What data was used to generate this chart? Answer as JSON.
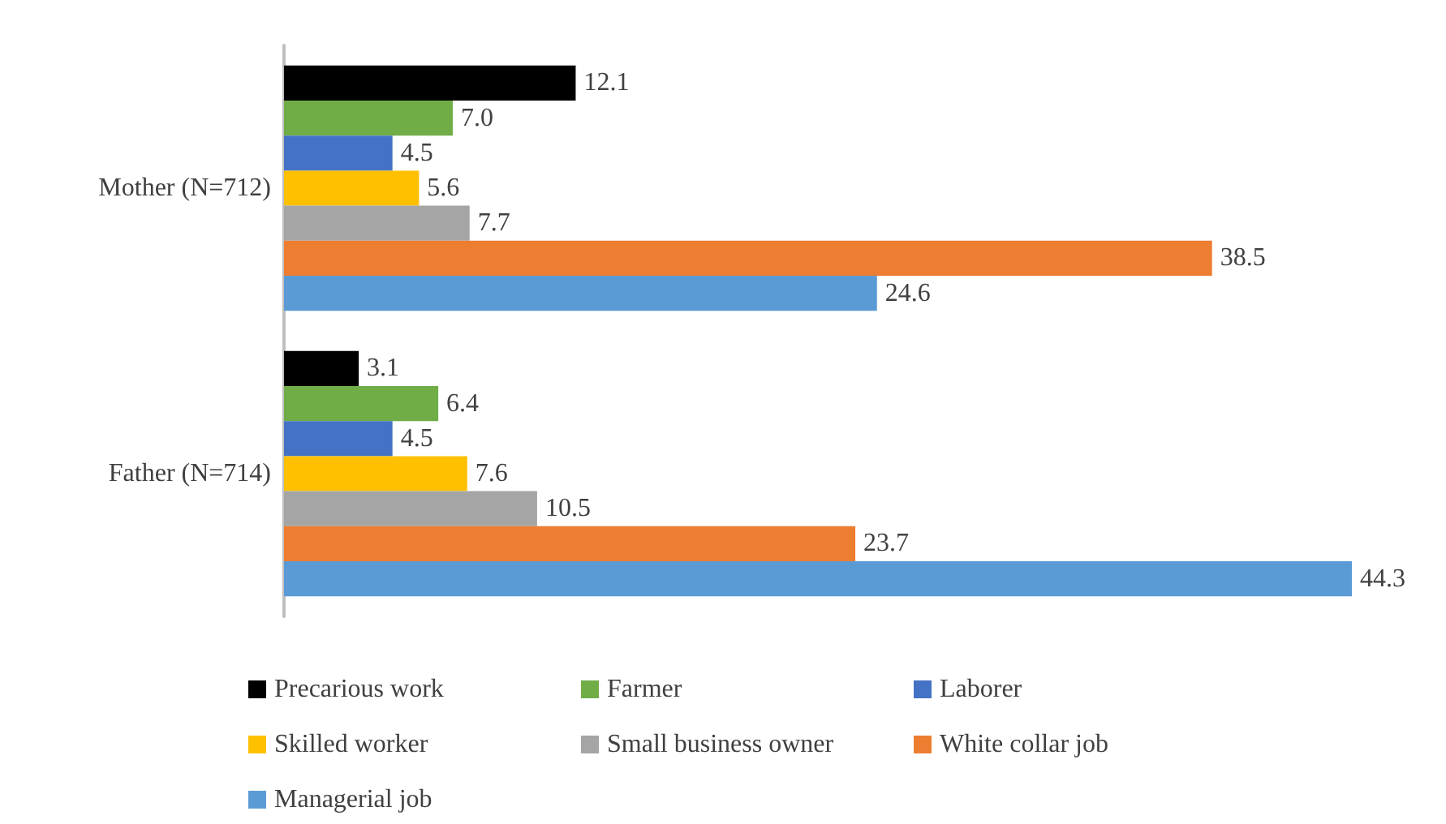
{
  "chart_data": {
    "type": "bar",
    "orientation": "horizontal",
    "categories": [
      "Mother (N=712)",
      "Father (N=714)"
    ],
    "legend": "bottom",
    "series": [
      {
        "name": "Precarious work",
        "color": "#000000",
        "values": [
          12.1,
          3.1
        ],
        "value_labels": [
          "12.1",
          "3.1"
        ]
      },
      {
        "name": "Farmer",
        "color": "#70ad47",
        "values": [
          7.0,
          6.4
        ],
        "value_labels": [
          "7.0",
          "6.4"
        ]
      },
      {
        "name": "Laborer",
        "color": "#4472c4",
        "values": [
          4.5,
          4.5
        ],
        "value_labels": [
          "4.5",
          "4.5"
        ]
      },
      {
        "name": "Skilled worker",
        "color": "#ffc000",
        "values": [
          5.6,
          7.6
        ],
        "value_labels": [
          "5.6",
          "7.6"
        ]
      },
      {
        "name": "Small business owner",
        "color": "#a5a5a5",
        "values": [
          7.7,
          10.5
        ],
        "value_labels": [
          "7.7",
          "10.5"
        ]
      },
      {
        "name": "White collar job",
        "color": "#ed7d31",
        "values": [
          38.5,
          23.7
        ],
        "value_labels": [
          "38.5",
          "23.7"
        ]
      },
      {
        "name": "Managerial job",
        "color": "#5b9bd5",
        "values": [
          24.6,
          44.3
        ],
        "value_labels": [
          "24.6",
          "44.3"
        ]
      }
    ]
  }
}
